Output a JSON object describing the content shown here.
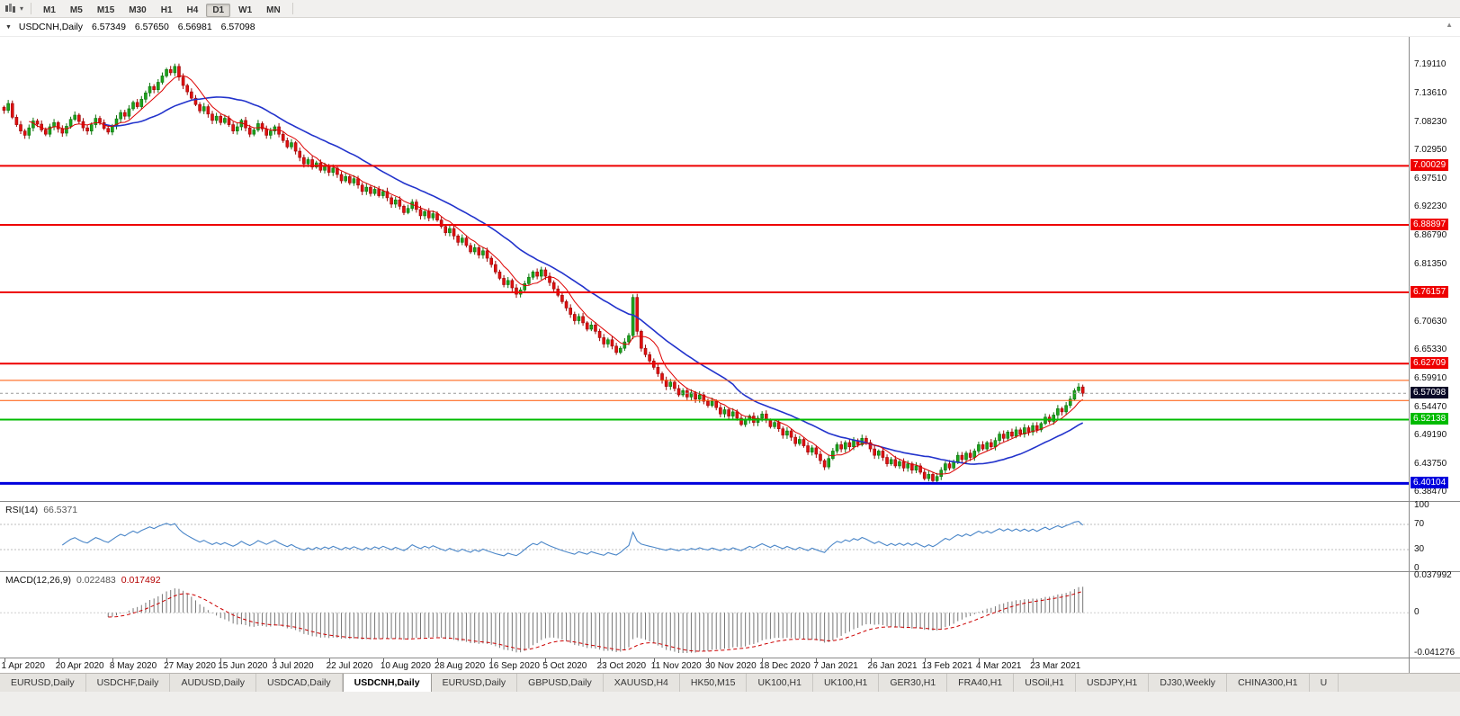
{
  "icons": {
    "window_menu": "▼",
    "chart_dropdown": "▾",
    "scroll_up": "▲"
  },
  "toolbar": {
    "timeframes": [
      {
        "label": "M1",
        "active": false
      },
      {
        "label": "M5",
        "active": false
      },
      {
        "label": "M15",
        "active": false
      },
      {
        "label": "M30",
        "active": false
      },
      {
        "label": "H1",
        "active": false
      },
      {
        "label": "H4",
        "active": false
      },
      {
        "label": "D1",
        "active": true
      },
      {
        "label": "W1",
        "active": false
      },
      {
        "label": "MN",
        "active": false
      }
    ]
  },
  "chart": {
    "symbol_title": "USDCNH,Daily",
    "open": "6.57349",
    "high": "6.57650",
    "low": "6.56981",
    "close": "6.57098",
    "colors": {
      "up_candle": "#1ca31c",
      "up_candle_border": "#0d720d",
      "down_candle": "#e01010",
      "down_candle_border": "#9c0505",
      "ma_fast": "#dd0000",
      "ma_slow": "#2233cc"
    },
    "price_axis_labels": [
      "7.19110",
      "7.13610",
      "7.08230",
      "7.02950",
      "6.97510",
      "6.92230",
      "6.86790",
      "6.81350",
      "6.70630",
      "6.65330",
      "6.59910",
      "6.54470",
      "6.49190",
      "6.43750",
      "6.38470"
    ],
    "hlines": [
      {
        "price": 7.00029,
        "label": "7.00029",
        "color": "#ee0000",
        "width": 2
      },
      {
        "price": 6.88897,
        "label": "6.88897",
        "color": "#ee0000",
        "width": 2
      },
      {
        "price": 6.76157,
        "label": "6.76157",
        "color": "#ee0000",
        "width": 2
      },
      {
        "price": 6.62709,
        "label": "6.62709",
        "color": "#ee0000",
        "width": 2
      },
      {
        "price": 6.5955,
        "label": "",
        "color": "#ff5500",
        "width": 1
      },
      {
        "price": 6.5575,
        "label": "",
        "color": "#ff5500",
        "width": 1
      },
      {
        "price": 6.52138,
        "label": "6.52138",
        "color": "#00bb00",
        "width": 2
      },
      {
        "price": 6.40104,
        "label": "6.40104",
        "color": "#0000dd",
        "width": 3
      }
    ],
    "current_price": {
      "label": "6.57098",
      "price": 6.57098,
      "box_color": "#0a0a28"
    }
  },
  "rsi": {
    "title": "RSI(14)",
    "value": "66.5371",
    "period": 14,
    "axis": [
      "100",
      "70",
      "30",
      "0"
    ],
    "levels": [
      70,
      30
    ],
    "line_color": "#4a86c8"
  },
  "macd": {
    "title": "MACD(12,26,9)",
    "value_main": "0.022483",
    "value_signal": "0.017492",
    "axis": [
      "0.037992",
      "0",
      "-0.041276"
    ],
    "axis_max": 0.037992,
    "axis_min": -0.041276,
    "histogram_color": "#777777",
    "signal_color": "#cc0000"
  },
  "tabs": [
    {
      "label": "EURUSD,Daily",
      "active": false
    },
    {
      "label": "USDCHF,Daily",
      "active": false
    },
    {
      "label": "AUDUSD,Daily",
      "active": false
    },
    {
      "label": "USDCAD,Daily",
      "active": false
    },
    {
      "label": "USDCNH,Daily",
      "active": true
    },
    {
      "label": "EURUSD,Daily",
      "active": false
    },
    {
      "label": "GBPUSD,Daily",
      "active": false
    },
    {
      "label": "XAUUSD,H4",
      "active": false
    },
    {
      "label": "HK50,M15",
      "active": false
    },
    {
      "label": "UK100,H1",
      "active": false
    },
    {
      "label": "UK100,H1",
      "active": false
    },
    {
      "label": "GER30,H1",
      "active": false
    },
    {
      "label": "FRA40,H1",
      "active": false
    },
    {
      "label": "USOil,H1",
      "active": false
    },
    {
      "label": "USDJPY,H1",
      "active": false
    },
    {
      "label": "DJ30,Weekly",
      "active": false
    },
    {
      "label": "CHINA300,H1",
      "active": false
    },
    {
      "label": "U",
      "active": false
    }
  ],
  "chart_data": {
    "type": "candlestick",
    "symbol": "USDCNH",
    "timeframe": "Daily",
    "title": "USDCNH,Daily 6.57349 6.57650 6.56981 6.57098",
    "price_range_visible": [
      6.3677,
      7.2437
    ],
    "x_labels": [
      "1 Apr 2020",
      "20 Apr 2020",
      "8 May 2020",
      "27 May 2020",
      "15 Jun 2020",
      "3 Jul 2020",
      "22 Jul 2020",
      "10 Aug 2020",
      "28 Aug 2020",
      "16 Sep 2020",
      "5 Oct 2020",
      "23 Oct 2020",
      "11 Nov 2020",
      "30 Nov 2020",
      "18 Dec 2020",
      "7 Jan 2021",
      "26 Jan 2021",
      "13 Feb 2021",
      "4 Mar 2021",
      "23 Mar 2021"
    ],
    "bars_per_label": 13,
    "closes": [
      7.105,
      7.118,
      7.092,
      7.078,
      7.066,
      7.058,
      7.072,
      7.085,
      7.079,
      7.068,
      7.06,
      7.074,
      7.082,
      7.07,
      7.062,
      7.075,
      7.088,
      7.096,
      7.084,
      7.072,
      7.066,
      7.078,
      7.09,
      7.082,
      7.071,
      7.064,
      7.076,
      7.089,
      7.101,
      7.094,
      7.108,
      7.12,
      7.112,
      7.126,
      7.138,
      7.15,
      7.144,
      7.158,
      7.17,
      7.182,
      7.176,
      7.188,
      7.168,
      7.152,
      7.14,
      7.128,
      7.116,
      7.104,
      7.112,
      7.098,
      7.086,
      7.094,
      7.082,
      7.09,
      7.078,
      7.066,
      7.074,
      7.086,
      7.072,
      7.06,
      7.068,
      7.08,
      7.07,
      7.058,
      7.066,
      7.074,
      7.06,
      7.048,
      7.036,
      7.044,
      7.028,
      7.016,
      7.004,
      7.012,
      6.998,
      7.006,
      6.992,
      7.0,
      6.988,
      6.996,
      6.984,
      6.972,
      6.98,
      6.968,
      6.976,
      6.964,
      6.952,
      6.96,
      6.948,
      6.956,
      6.944,
      6.952,
      6.94,
      6.928,
      6.936,
      6.924,
      6.912,
      6.92,
      6.932,
      6.918,
      6.906,
      6.914,
      6.902,
      6.91,
      6.898,
      6.886,
      6.874,
      6.882,
      6.868,
      6.856,
      6.864,
      6.85,
      6.838,
      6.846,
      6.832,
      6.84,
      6.826,
      6.814,
      6.8,
      6.788,
      6.776,
      6.784,
      6.77,
      6.758,
      6.766,
      6.778,
      6.79,
      6.8,
      6.792,
      6.804,
      6.792,
      6.78,
      6.768,
      6.756,
      6.744,
      6.732,
      6.72,
      6.708,
      6.716,
      6.704,
      6.692,
      6.7,
      6.688,
      6.676,
      6.664,
      6.672,
      6.66,
      6.648,
      6.656,
      6.668,
      6.68,
      6.752,
      6.688,
      6.656,
      6.644,
      6.632,
      6.62,
      6.608,
      6.596,
      6.584,
      6.592,
      6.58,
      6.568,
      6.576,
      6.564,
      6.572,
      6.56,
      6.568,
      6.556,
      6.548,
      6.556,
      6.544,
      6.532,
      6.54,
      6.528,
      6.536,
      6.524,
      6.512,
      6.52,
      6.528,
      6.516,
      6.524,
      6.532,
      6.52,
      6.508,
      6.516,
      6.504,
      6.492,
      6.5,
      6.488,
      6.476,
      6.484,
      6.472,
      6.46,
      6.468,
      6.456,
      6.444,
      6.432,
      6.448,
      6.462,
      6.474,
      6.466,
      6.478,
      6.47,
      6.482,
      6.474,
      6.486,
      6.478,
      6.466,
      6.454,
      6.462,
      6.45,
      6.438,
      6.446,
      6.434,
      6.442,
      6.43,
      6.438,
      6.426,
      6.434,
      6.422,
      6.41,
      6.418,
      6.406,
      6.414,
      6.426,
      6.438,
      6.43,
      6.442,
      6.454,
      6.446,
      6.458,
      6.45,
      6.462,
      6.474,
      6.466,
      6.478,
      6.47,
      6.482,
      6.494,
      6.486,
      6.498,
      6.49,
      6.502,
      6.494,
      6.506,
      6.498,
      6.51,
      6.502,
      6.514,
      6.526,
      6.518,
      6.53,
      6.542,
      6.536,
      6.548,
      6.56,
      6.576,
      6.583,
      6.571
    ]
  }
}
